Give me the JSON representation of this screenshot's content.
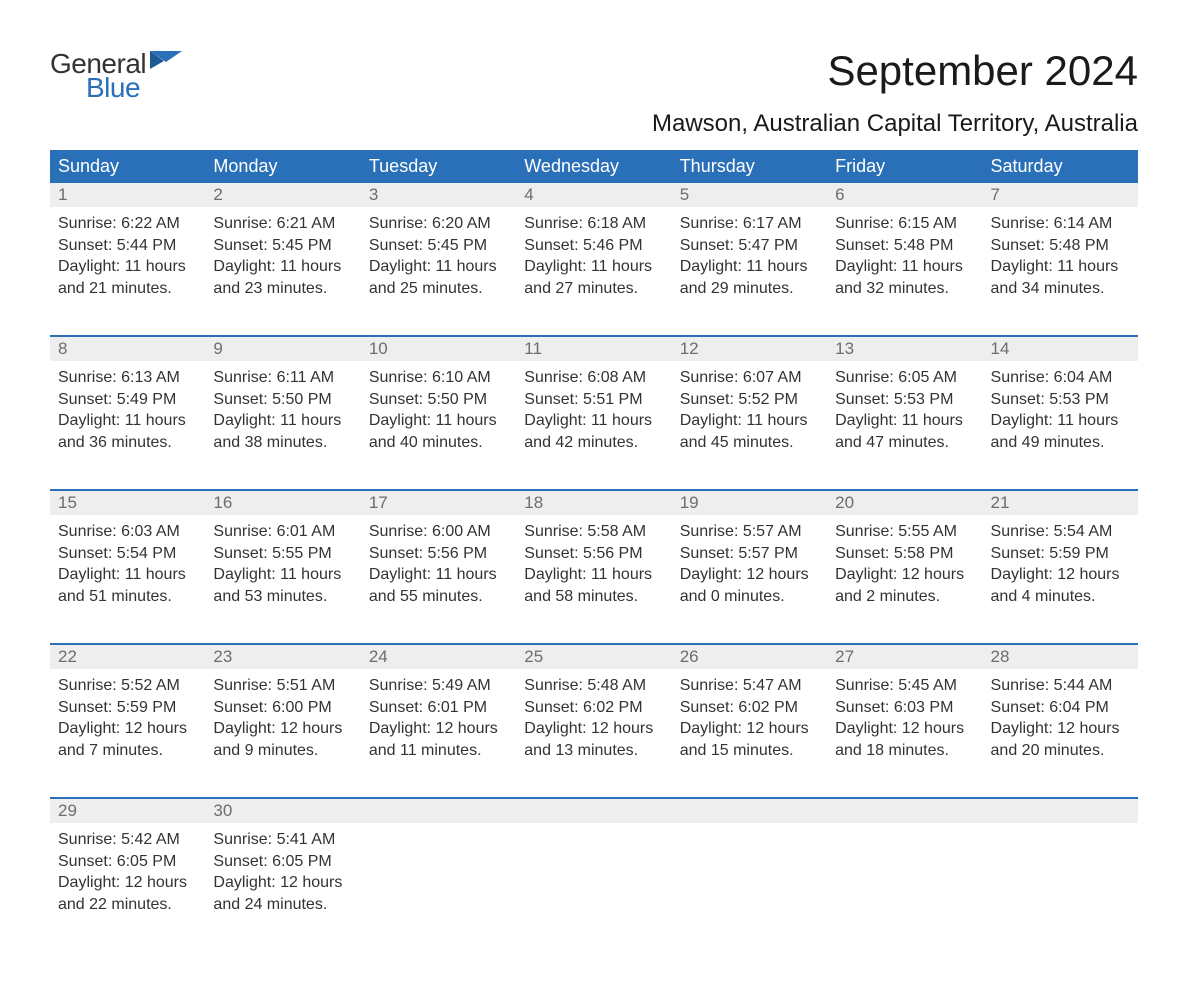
{
  "logo": {
    "line1": "General",
    "line2": "Blue"
  },
  "title": "September 2024",
  "location": "Mawson, Australian Capital Territory, Australia",
  "colors": {
    "brand_blue": "#2a70b8",
    "header_row_bg": "#2a70b8",
    "header_row_text": "#ffffff",
    "daynum_bg": "#eeeeee",
    "daynum_text": "#6d6d6d",
    "body_text": "#333333",
    "page_bg": "#ffffff"
  },
  "weekdays": [
    "Sunday",
    "Monday",
    "Tuesday",
    "Wednesday",
    "Thursday",
    "Friday",
    "Saturday"
  ],
  "weeks": [
    [
      {
        "day": "1",
        "sunrise": "Sunrise: 6:22 AM",
        "sunset": "Sunset: 5:44 PM",
        "daylight1": "Daylight: 11 hours",
        "daylight2": "and 21 minutes."
      },
      {
        "day": "2",
        "sunrise": "Sunrise: 6:21 AM",
        "sunset": "Sunset: 5:45 PM",
        "daylight1": "Daylight: 11 hours",
        "daylight2": "and 23 minutes."
      },
      {
        "day": "3",
        "sunrise": "Sunrise: 6:20 AM",
        "sunset": "Sunset: 5:45 PM",
        "daylight1": "Daylight: 11 hours",
        "daylight2": "and 25 minutes."
      },
      {
        "day": "4",
        "sunrise": "Sunrise: 6:18 AM",
        "sunset": "Sunset: 5:46 PM",
        "daylight1": "Daylight: 11 hours",
        "daylight2": "and 27 minutes."
      },
      {
        "day": "5",
        "sunrise": "Sunrise: 6:17 AM",
        "sunset": "Sunset: 5:47 PM",
        "daylight1": "Daylight: 11 hours",
        "daylight2": "and 29 minutes."
      },
      {
        "day": "6",
        "sunrise": "Sunrise: 6:15 AM",
        "sunset": "Sunset: 5:48 PM",
        "daylight1": "Daylight: 11 hours",
        "daylight2": "and 32 minutes."
      },
      {
        "day": "7",
        "sunrise": "Sunrise: 6:14 AM",
        "sunset": "Sunset: 5:48 PM",
        "daylight1": "Daylight: 11 hours",
        "daylight2": "and 34 minutes."
      }
    ],
    [
      {
        "day": "8",
        "sunrise": "Sunrise: 6:13 AM",
        "sunset": "Sunset: 5:49 PM",
        "daylight1": "Daylight: 11 hours",
        "daylight2": "and 36 minutes."
      },
      {
        "day": "9",
        "sunrise": "Sunrise: 6:11 AM",
        "sunset": "Sunset: 5:50 PM",
        "daylight1": "Daylight: 11 hours",
        "daylight2": "and 38 minutes."
      },
      {
        "day": "10",
        "sunrise": "Sunrise: 6:10 AM",
        "sunset": "Sunset: 5:50 PM",
        "daylight1": "Daylight: 11 hours",
        "daylight2": "and 40 minutes."
      },
      {
        "day": "11",
        "sunrise": "Sunrise: 6:08 AM",
        "sunset": "Sunset: 5:51 PM",
        "daylight1": "Daylight: 11 hours",
        "daylight2": "and 42 minutes."
      },
      {
        "day": "12",
        "sunrise": "Sunrise: 6:07 AM",
        "sunset": "Sunset: 5:52 PM",
        "daylight1": "Daylight: 11 hours",
        "daylight2": "and 45 minutes."
      },
      {
        "day": "13",
        "sunrise": "Sunrise: 6:05 AM",
        "sunset": "Sunset: 5:53 PM",
        "daylight1": "Daylight: 11 hours",
        "daylight2": "and 47 minutes."
      },
      {
        "day": "14",
        "sunrise": "Sunrise: 6:04 AM",
        "sunset": "Sunset: 5:53 PM",
        "daylight1": "Daylight: 11 hours",
        "daylight2": "and 49 minutes."
      }
    ],
    [
      {
        "day": "15",
        "sunrise": "Sunrise: 6:03 AM",
        "sunset": "Sunset: 5:54 PM",
        "daylight1": "Daylight: 11 hours",
        "daylight2": "and 51 minutes."
      },
      {
        "day": "16",
        "sunrise": "Sunrise: 6:01 AM",
        "sunset": "Sunset: 5:55 PM",
        "daylight1": "Daylight: 11 hours",
        "daylight2": "and 53 minutes."
      },
      {
        "day": "17",
        "sunrise": "Sunrise: 6:00 AM",
        "sunset": "Sunset: 5:56 PM",
        "daylight1": "Daylight: 11 hours",
        "daylight2": "and 55 minutes."
      },
      {
        "day": "18",
        "sunrise": "Sunrise: 5:58 AM",
        "sunset": "Sunset: 5:56 PM",
        "daylight1": "Daylight: 11 hours",
        "daylight2": "and 58 minutes."
      },
      {
        "day": "19",
        "sunrise": "Sunrise: 5:57 AM",
        "sunset": "Sunset: 5:57 PM",
        "daylight1": "Daylight: 12 hours",
        "daylight2": "and 0 minutes."
      },
      {
        "day": "20",
        "sunrise": "Sunrise: 5:55 AM",
        "sunset": "Sunset: 5:58 PM",
        "daylight1": "Daylight: 12 hours",
        "daylight2": "and 2 minutes."
      },
      {
        "day": "21",
        "sunrise": "Sunrise: 5:54 AM",
        "sunset": "Sunset: 5:59 PM",
        "daylight1": "Daylight: 12 hours",
        "daylight2": "and 4 minutes."
      }
    ],
    [
      {
        "day": "22",
        "sunrise": "Sunrise: 5:52 AM",
        "sunset": "Sunset: 5:59 PM",
        "daylight1": "Daylight: 12 hours",
        "daylight2": "and 7 minutes."
      },
      {
        "day": "23",
        "sunrise": "Sunrise: 5:51 AM",
        "sunset": "Sunset: 6:00 PM",
        "daylight1": "Daylight: 12 hours",
        "daylight2": "and 9 minutes."
      },
      {
        "day": "24",
        "sunrise": "Sunrise: 5:49 AM",
        "sunset": "Sunset: 6:01 PM",
        "daylight1": "Daylight: 12 hours",
        "daylight2": "and 11 minutes."
      },
      {
        "day": "25",
        "sunrise": "Sunrise: 5:48 AM",
        "sunset": "Sunset: 6:02 PM",
        "daylight1": "Daylight: 12 hours",
        "daylight2": "and 13 minutes."
      },
      {
        "day": "26",
        "sunrise": "Sunrise: 5:47 AM",
        "sunset": "Sunset: 6:02 PM",
        "daylight1": "Daylight: 12 hours",
        "daylight2": "and 15 minutes."
      },
      {
        "day": "27",
        "sunrise": "Sunrise: 5:45 AM",
        "sunset": "Sunset: 6:03 PM",
        "daylight1": "Daylight: 12 hours",
        "daylight2": "and 18 minutes."
      },
      {
        "day": "28",
        "sunrise": "Sunrise: 5:44 AM",
        "sunset": "Sunset: 6:04 PM",
        "daylight1": "Daylight: 12 hours",
        "daylight2": "and 20 minutes."
      }
    ],
    [
      {
        "day": "29",
        "sunrise": "Sunrise: 5:42 AM",
        "sunset": "Sunset: 6:05 PM",
        "daylight1": "Daylight: 12 hours",
        "daylight2": "and 22 minutes."
      },
      {
        "day": "30",
        "sunrise": "Sunrise: 5:41 AM",
        "sunset": "Sunset: 6:05 PM",
        "daylight1": "Daylight: 12 hours",
        "daylight2": "and 24 minutes."
      },
      null,
      null,
      null,
      null,
      null
    ]
  ]
}
